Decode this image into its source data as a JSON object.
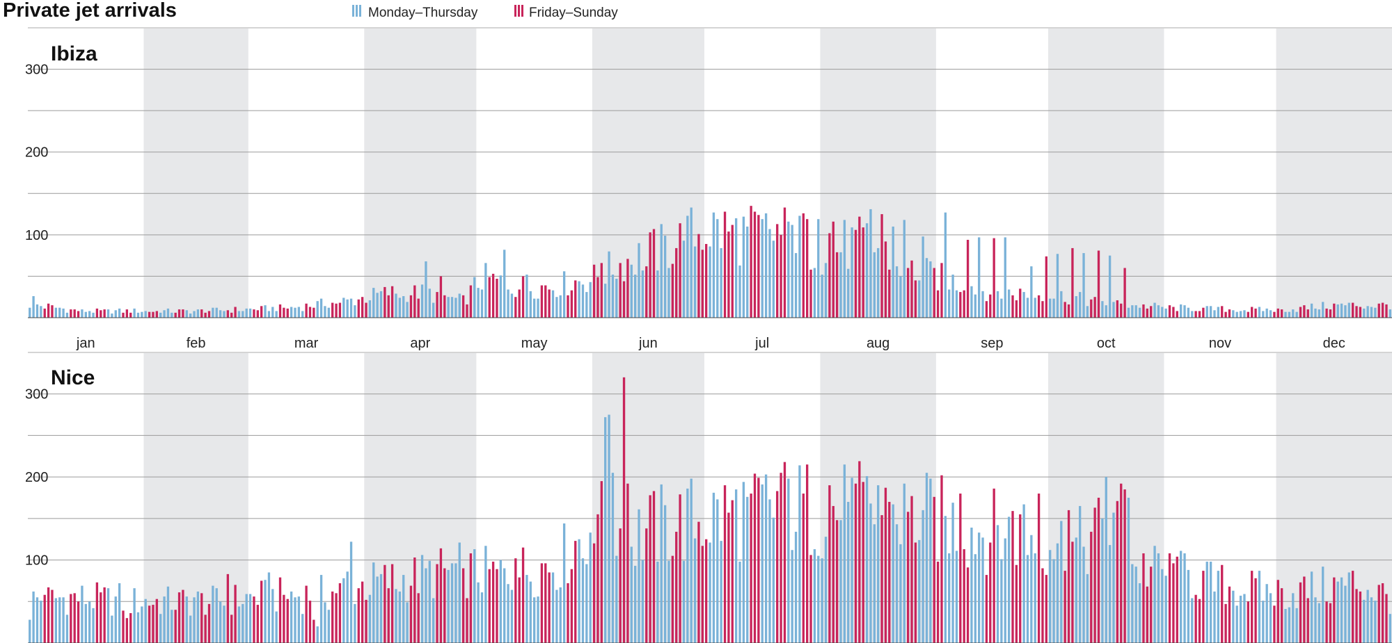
{
  "chart_data": {
    "type": "bar",
    "title": "Private jet arrivals",
    "legend": [
      {
        "label": "Monday–Thursday",
        "color": "#7ab2d8"
      },
      {
        "label": "Friday–Sunday",
        "color": "#c8245a"
      }
    ],
    "months": [
      "jan",
      "feb",
      "mar",
      "apr",
      "may",
      "jun",
      "jul",
      "aug",
      "sep",
      "oct",
      "nov",
      "dec"
    ],
    "days_in_month": [
      31,
      28,
      31,
      30,
      31,
      30,
      31,
      31,
      30,
      31,
      30,
      31
    ],
    "first_weekday": 0,
    "weekend_day_indices": [
      4,
      5,
      6
    ],
    "y_ticks": [
      100,
      200,
      300
    ],
    "ylim": [
      0,
      350
    ],
    "grid": true,
    "panels": [
      {
        "name": "Ibiza",
        "anchors": [
          [
            0,
            16
          ],
          [
            14,
            8
          ],
          [
            31,
            8
          ],
          [
            45,
            8
          ],
          [
            59,
            10
          ],
          [
            70,
            12
          ],
          [
            85,
            20
          ],
          [
            96,
            30
          ],
          [
            106,
            30
          ],
          [
            116,
            20
          ],
          [
            121,
            48
          ],
          [
            130,
            38
          ],
          [
            140,
            38
          ],
          [
            151,
            48
          ],
          [
            160,
            70
          ],
          [
            171,
            85
          ],
          [
            181,
            108
          ],
          [
            191,
            100
          ],
          [
            201,
            102
          ],
          [
            212,
            82
          ],
          [
            225,
            90
          ],
          [
            235,
            58
          ],
          [
            244,
            48
          ],
          [
            258,
            30
          ],
          [
            273,
            28
          ],
          [
            289,
            17
          ],
          [
            304,
            12
          ],
          [
            319,
            10
          ],
          [
            334,
            9
          ],
          [
            349,
            15
          ],
          [
            364,
            15
          ]
        ],
        "spikes": [
          [
            1,
            26
          ],
          [
            83,
            18
          ],
          [
            100,
            26
          ],
          [
            106,
            68
          ],
          [
            110,
            50
          ],
          [
            127,
            82
          ],
          [
            133,
            52
          ],
          [
            153,
            66
          ],
          [
            165,
            62
          ],
          [
            175,
            93
          ],
          [
            201,
            100
          ],
          [
            204,
            112
          ],
          [
            207,
            126
          ],
          [
            211,
            119
          ],
          [
            214,
            102
          ],
          [
            215,
            116
          ],
          [
            218,
            118
          ],
          [
            225,
            131
          ],
          [
            228,
            125
          ],
          [
            231,
            110
          ],
          [
            234,
            118
          ],
          [
            239,
            98
          ],
          [
            245,
            127
          ],
          [
            251,
            94
          ],
          [
            254,
            97
          ],
          [
            258,
            96
          ],
          [
            261,
            97
          ],
          [
            268,
            62
          ],
          [
            272,
            74
          ],
          [
            275,
            77
          ],
          [
            279,
            84
          ],
          [
            282,
            78
          ],
          [
            286,
            81
          ],
          [
            289,
            75
          ],
          [
            293,
            60
          ]
        ]
      },
      {
        "name": "Nice",
        "anchors": [
          [
            0,
            52
          ],
          [
            12,
            55
          ],
          [
            26,
            50
          ],
          [
            38,
            50
          ],
          [
            50,
            50
          ],
          [
            60,
            55
          ],
          [
            80,
            60
          ],
          [
            92,
            72
          ],
          [
            105,
            80
          ],
          [
            115,
            88
          ],
          [
            125,
            82
          ],
          [
            135,
            90
          ],
          [
            142,
            100
          ],
          [
            146,
            120
          ],
          [
            152,
            160
          ],
          [
            160,
            128
          ],
          [
            170,
            140
          ],
          [
            180,
            150
          ],
          [
            190,
            158
          ],
          [
            200,
            165
          ],
          [
            212,
            160
          ],
          [
            222,
            158
          ],
          [
            232,
            155
          ],
          [
            242,
            148
          ],
          [
            252,
            138
          ],
          [
            262,
            132
          ],
          [
            272,
            125
          ],
          [
            280,
            115
          ],
          [
            285,
            130
          ],
          [
            290,
            140
          ],
          [
            296,
            90
          ],
          [
            305,
            85
          ],
          [
            320,
            68
          ],
          [
            335,
            60
          ],
          [
            349,
            68
          ],
          [
            355,
            72
          ],
          [
            364,
            55
          ]
        ],
        "spikes": [
          [
            0,
            28
          ],
          [
            4,
            58
          ],
          [
            24,
            72
          ],
          [
            26,
            30
          ],
          [
            44,
            55
          ],
          [
            53,
            83
          ],
          [
            64,
            85
          ],
          [
            76,
            28
          ],
          [
            77,
            20
          ],
          [
            82,
            60
          ],
          [
            85,
            86
          ],
          [
            86,
            122
          ],
          [
            98,
            65
          ],
          [
            116,
            90
          ],
          [
            130,
            102
          ],
          [
            148,
            102
          ],
          [
            151,
            120
          ],
          [
            153,
            195
          ],
          [
            154,
            272
          ],
          [
            155,
            275
          ],
          [
            156,
            205
          ],
          [
            158,
            138
          ],
          [
            159,
            320
          ],
          [
            160,
            192
          ],
          [
            193,
            180
          ],
          [
            201,
            205
          ],
          [
            203,
            198
          ],
          [
            214,
            190
          ],
          [
            219,
            170
          ],
          [
            227,
            190
          ],
          [
            230,
            170
          ],
          [
            236,
            177
          ],
          [
            249,
            180
          ],
          [
            263,
            159
          ],
          [
            266,
            167
          ],
          [
            270,
            180
          ],
          [
            273,
            112
          ],
          [
            278,
            160
          ],
          [
            287,
            150
          ],
          [
            288,
            200
          ],
          [
            292,
            192
          ],
          [
            293,
            185
          ],
          [
            294,
            175
          ],
          [
            298,
            108
          ],
          [
            302,
            108
          ],
          [
            307,
            104
          ]
        ]
      }
    ]
  }
}
